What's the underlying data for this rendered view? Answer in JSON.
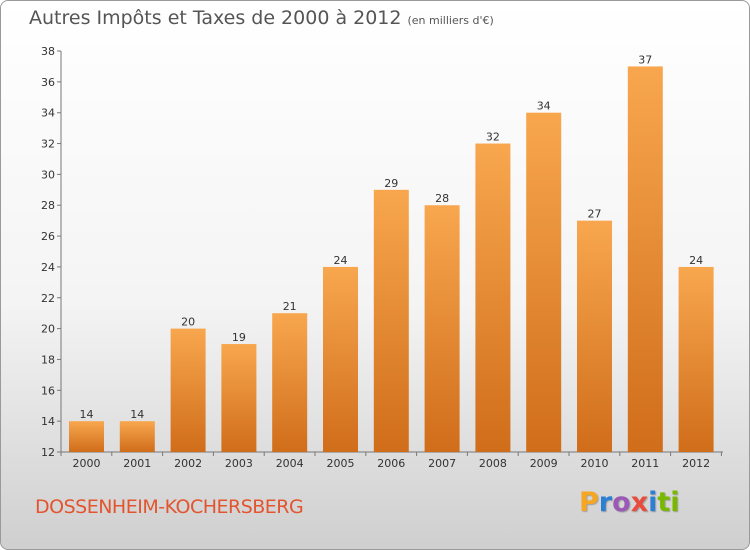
{
  "header": {
    "title": "Autres Impôts et Taxes de 2000 à 2012",
    "unit": "(en milliers d'€)"
  },
  "footer": {
    "commune": "DOSSENHEIM-KOCHERSBERG",
    "logo_letters": [
      "P",
      "r",
      "o",
      "x",
      "i",
      "t",
      "i"
    ],
    "logo_colors": [
      "#f5a623",
      "#2b7fd4",
      "#9b59b6",
      "#e74c3c",
      "#2b7fd4",
      "#7ab800",
      "#7ab800"
    ]
  },
  "chart_data": {
    "type": "bar",
    "title": "Autres Impôts et Taxes de 2000 à 2012",
    "xlabel": "",
    "ylabel": "",
    "categories": [
      "2000",
      "2001",
      "2002",
      "2003",
      "2004",
      "2005",
      "2006",
      "2007",
      "2008",
      "2009",
      "2010",
      "2011",
      "2012"
    ],
    "values": [
      14,
      14,
      20,
      19,
      21,
      24,
      29,
      28,
      32,
      34,
      27,
      37,
      24
    ],
    "ylim": [
      12,
      38
    ],
    "yticks": [
      12,
      14,
      16,
      18,
      20,
      22,
      24,
      26,
      28,
      30,
      32,
      34,
      36,
      38
    ],
    "grid": false,
    "bar_color_light": "#f8a74f",
    "bar_color_dark": "#d06d1a"
  }
}
